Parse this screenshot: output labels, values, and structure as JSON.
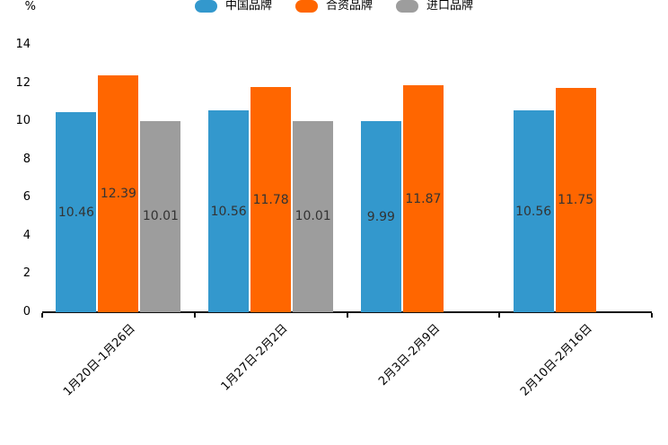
{
  "chart_data": {
    "type": "bar",
    "title": "",
    "unit_label": "%",
    "categories": [
      "1月20日-1月26日",
      "1月27日-2月2日",
      "2月3日-2月9日",
      "2月10日-2月16日"
    ],
    "series": [
      {
        "name": "中国品牌",
        "color": "#3398cd",
        "values": [
          10.46,
          10.56,
          9.99,
          10.56
        ]
      },
      {
        "name": "合资品牌",
        "color": "#ff6600",
        "values": [
          12.39,
          11.78,
          11.87,
          11.75
        ]
      },
      {
        "name": "进口品牌",
        "color": "#9d9d9d",
        "values": [
          10.01,
          10.01,
          null,
          null
        ]
      }
    ],
    "ylim": [
      0,
      14
    ],
    "yticks": [
      0,
      2,
      4,
      6,
      8,
      10,
      12,
      14
    ],
    "grid": false,
    "legend_position": "top-center",
    "value_label_position": "inside-center",
    "value_label_color": "#333333",
    "axis_color": "#111111"
  }
}
